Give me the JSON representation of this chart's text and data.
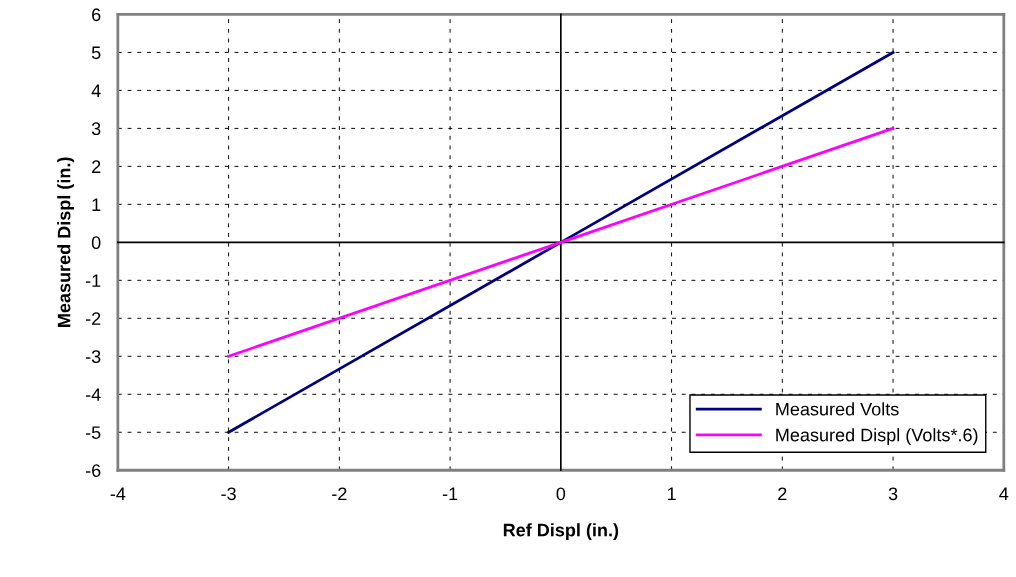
{
  "chart_data": {
    "type": "line",
    "xlabel": "Ref Displ (in.)",
    "ylabel": "Measured Displ (in.)",
    "x": [
      -3,
      0,
      3
    ],
    "series": [
      {
        "name": "Measured Volts",
        "color": "#000080",
        "values": [
          -5,
          0,
          5
        ]
      },
      {
        "name": "Measured Displ (Volts*.6)",
        "color": "#ff00ff",
        "values": [
          -3,
          0,
          3
        ]
      }
    ],
    "xlim": [
      -4,
      4
    ],
    "xticks": [
      -4,
      -3,
      -2,
      -1,
      0,
      1,
      2,
      3,
      4
    ],
    "ylim": [
      -6,
      6
    ],
    "yticks": [
      -6,
      -5,
      -4,
      -3,
      -2,
      -1,
      0,
      1,
      2,
      3,
      4,
      5,
      6
    ],
    "grid": true,
    "legend": "bottom right",
    "marker": "none",
    "line_style": "solid"
  }
}
